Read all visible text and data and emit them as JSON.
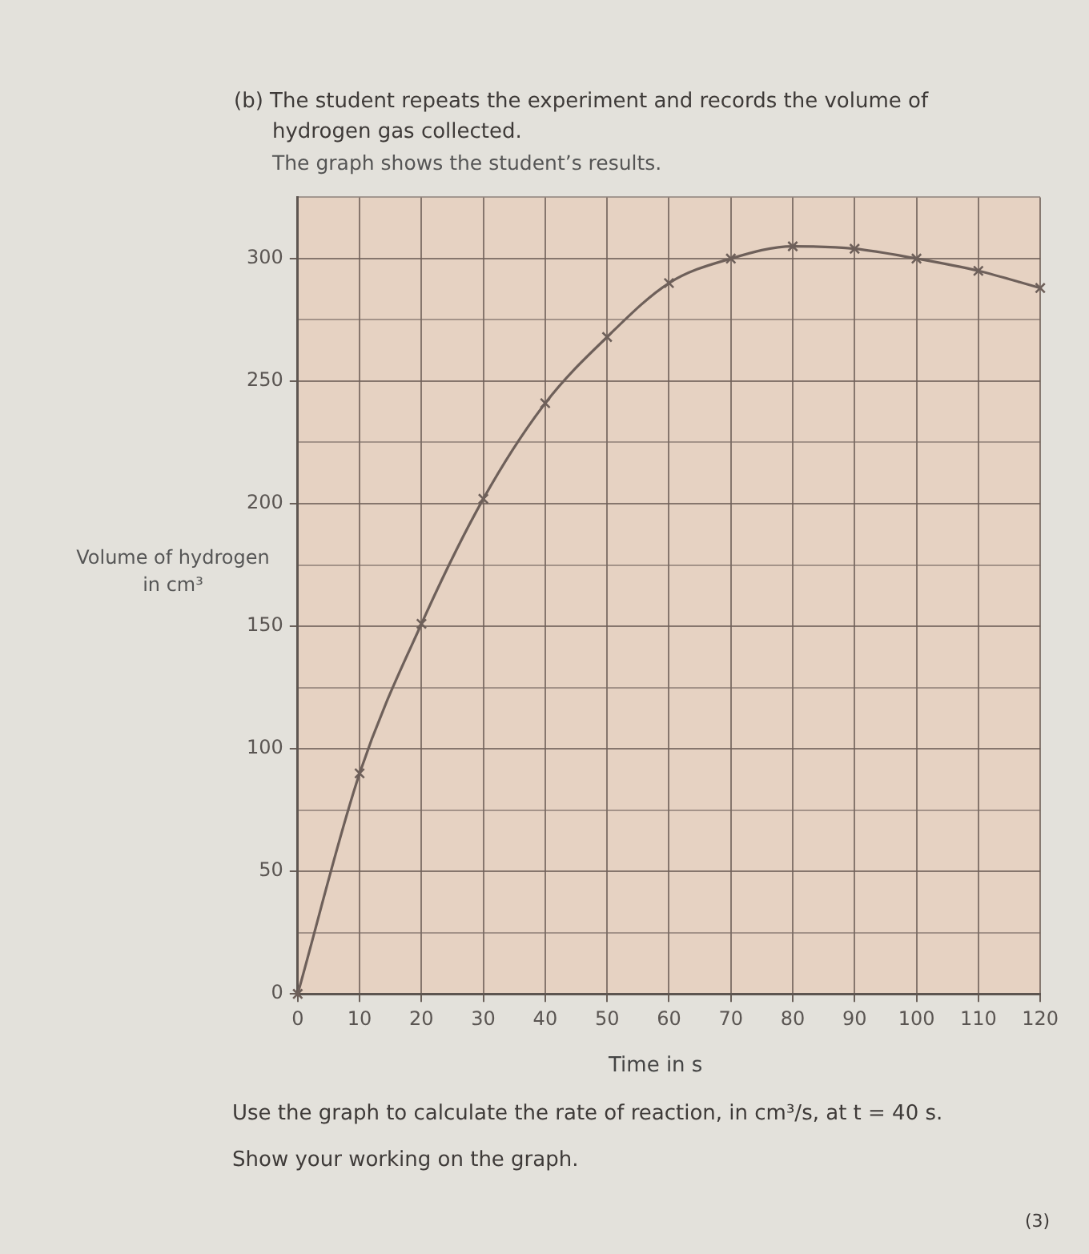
{
  "chart_data": {
    "type": "line",
    "title": "(b) The student repeats the experiment and records the volume of hydrogen gas collected.",
    "subtitle": "The graph shows the student’s results.",
    "xlabel": "Time in s",
    "ylabel": "Volume of hydrogen in cm³",
    "annotations": [
      "Use the graph to calculate the rate of reaction, in cm³/s, at t = 40 s.",
      "Show your working on the graph.",
      "(3)"
    ],
    "x": [
      0,
      10,
      20,
      30,
      40,
      50,
      60,
      70,
      80,
      90,
      100,
      110,
      120
    ],
    "values": [
      0,
      90,
      151,
      202,
      241,
      268,
      290,
      300,
      305,
      304,
      300,
      295,
      288
    ],
    "color": "#6e605a",
    "marker": "cross",
    "line_style": "solid",
    "xlim": [
      0,
      120
    ],
    "xticks": [
      0,
      10,
      20,
      30,
      40,
      50,
      60,
      70,
      80,
      90,
      100,
      110,
      120
    ],
    "ylim": [
      0,
      325
    ],
    "yticks": [
      0,
      {
        "value": 25,
        "label": null
      },
      50,
      {
        "value": 75,
        "label": null
      },
      100,
      {
        "value": 125,
        "label": null
      },
      150,
      {
        "value": 175,
        "label": null
      },
      200,
      {
        "value": 225,
        "label": null
      },
      250,
      {
        "value": 275,
        "label": null
      },
      300,
      {
        "value": 325,
        "label": null
      }
    ],
    "grid": true
  }
}
